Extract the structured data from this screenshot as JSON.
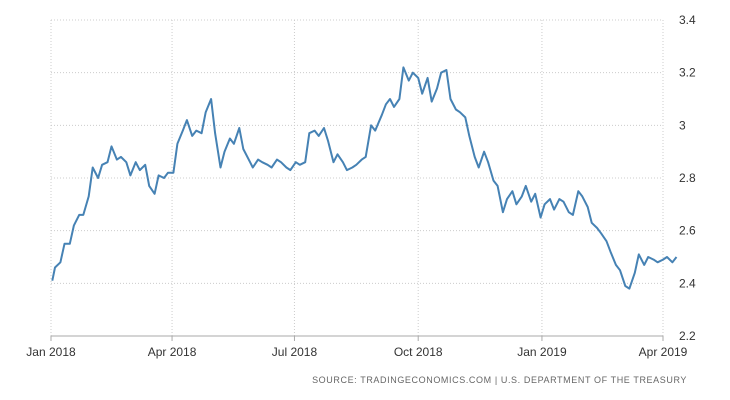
{
  "chart_data": {
    "type": "line",
    "x_ticks": [
      "Jan 2018",
      "Apr 2018",
      "Jul 2018",
      "Oct 2018",
      "Jan 2019",
      "Apr 2019"
    ],
    "y_ticks": [
      "2.2",
      "2.4",
      "2.6",
      "2.8",
      "3",
      "3.2",
      "3.4"
    ],
    "ylim": [
      2.2,
      3.4
    ],
    "grid": true,
    "colors": {
      "line": "#4682b4",
      "grid": "#cccccc"
    },
    "series": [
      {
        "x": [
          "2018-01-02",
          "2018-01-04",
          "2018-01-08",
          "2018-01-11",
          "2018-01-15",
          "2018-01-18",
          "2018-01-22",
          "2018-01-25",
          "2018-01-29",
          "2018-02-01",
          "2018-02-05",
          "2018-02-08",
          "2018-02-12",
          "2018-02-15",
          "2018-02-19",
          "2018-02-22",
          "2018-02-26",
          "2018-03-01",
          "2018-03-05",
          "2018-03-08",
          "2018-03-12",
          "2018-03-15",
          "2018-03-19",
          "2018-03-22",
          "2018-03-26",
          "2018-03-29",
          "2018-04-02",
          "2018-04-05",
          "2018-04-09",
          "2018-04-12",
          "2018-04-16",
          "2018-04-19",
          "2018-04-23",
          "2018-04-26",
          "2018-04-30",
          "2018-05-03",
          "2018-05-07",
          "2018-05-10",
          "2018-05-14",
          "2018-05-17",
          "2018-05-21",
          "2018-05-24",
          "2018-05-29",
          "2018-05-31",
          "2018-06-04",
          "2018-06-07",
          "2018-06-11",
          "2018-06-14",
          "2018-06-18",
          "2018-06-21",
          "2018-06-25",
          "2018-06-28",
          "2018-07-02",
          "2018-07-05",
          "2018-07-09",
          "2018-07-12",
          "2018-07-16",
          "2018-07-19",
          "2018-07-23",
          "2018-07-26",
          "2018-07-30",
          "2018-08-02",
          "2018-08-06",
          "2018-08-09",
          "2018-08-13",
          "2018-08-16",
          "2018-08-20",
          "2018-08-23",
          "2018-08-27",
          "2018-08-30",
          "2018-09-04",
          "2018-09-07",
          "2018-09-10",
          "2018-09-13",
          "2018-09-17",
          "2018-09-20",
          "2018-09-24",
          "2018-09-27",
          "2018-10-01",
          "2018-10-04",
          "2018-10-08",
          "2018-10-11",
          "2018-10-15",
          "2018-10-18",
          "2018-10-22",
          "2018-10-25",
          "2018-10-29",
          "2018-11-01",
          "2018-11-05",
          "2018-11-08",
          "2018-11-12",
          "2018-11-15",
          "2018-11-19",
          "2018-11-22",
          "2018-11-26",
          "2018-11-29",
          "2018-12-03",
          "2018-12-06",
          "2018-12-10",
          "2018-12-13",
          "2018-12-17",
          "2018-12-20",
          "2018-12-24",
          "2018-12-27",
          "2018-12-31",
          "2019-01-03",
          "2019-01-07",
          "2019-01-10",
          "2019-01-14",
          "2019-01-17",
          "2019-01-21",
          "2019-01-24",
          "2019-01-28",
          "2019-01-31",
          "2019-02-04",
          "2019-02-07",
          "2019-02-11",
          "2019-02-14",
          "2019-02-18",
          "2019-02-21",
          "2019-02-25",
          "2019-02-28",
          "2019-03-04",
          "2019-03-07",
          "2019-03-11",
          "2019-03-14",
          "2019-03-18",
          "2019-03-21",
          "2019-03-25",
          "2019-03-28",
          "2019-04-01",
          "2019-04-04",
          "2019-04-08",
          "2019-04-11"
        ],
        "values": [
          2.41,
          2.46,
          2.48,
          2.55,
          2.55,
          2.62,
          2.66,
          2.66,
          2.73,
          2.84,
          2.8,
          2.85,
          2.86,
          2.92,
          2.87,
          2.88,
          2.86,
          2.81,
          2.86,
          2.83,
          2.85,
          2.77,
          2.74,
          2.81,
          2.8,
          2.82,
          2.82,
          2.93,
          2.98,
          3.02,
          2.96,
          2.98,
          2.97,
          3.05,
          3.1,
          2.97,
          2.84,
          2.9,
          2.95,
          2.93,
          2.99,
          2.91,
          2.86,
          2.84,
          2.87,
          2.86,
          2.85,
          2.84,
          2.87,
          2.86,
          2.84,
          2.83,
          2.86,
          2.85,
          2.86,
          2.97,
          2.98,
          2.96,
          2.99,
          2.94,
          2.86,
          2.89,
          2.86,
          2.83,
          2.84,
          2.85,
          2.87,
          2.88,
          3.0,
          2.98,
          3.04,
          3.08,
          3.1,
          3.07,
          3.1,
          3.22,
          3.17,
          3.2,
          3.18,
          3.12,
          3.18,
          3.09,
          3.14,
          3.2,
          3.21,
          3.1,
          3.06,
          3.05,
          3.03,
          2.96,
          2.88,
          2.84,
          2.9,
          2.86,
          2.79,
          2.77,
          2.67,
          2.72,
          2.75,
          2.7,
          2.73,
          2.77,
          2.71,
          2.74,
          2.65,
          2.7,
          2.72,
          2.68,
          2.72,
          2.71,
          2.67,
          2.66,
          2.75,
          2.73,
          2.69,
          2.63,
          2.61,
          2.59,
          2.56,
          2.52,
          2.47,
          2.45,
          2.39,
          2.38,
          2.44,
          2.51,
          2.47,
          2.5,
          2.49,
          2.48,
          2.49,
          2.5,
          2.48,
          2.5
        ]
      }
    ]
  },
  "source_text": "SOURCE: TRADINGECONOMICS.COM | U.S. DEPARTMENT OF THE TREASURY"
}
